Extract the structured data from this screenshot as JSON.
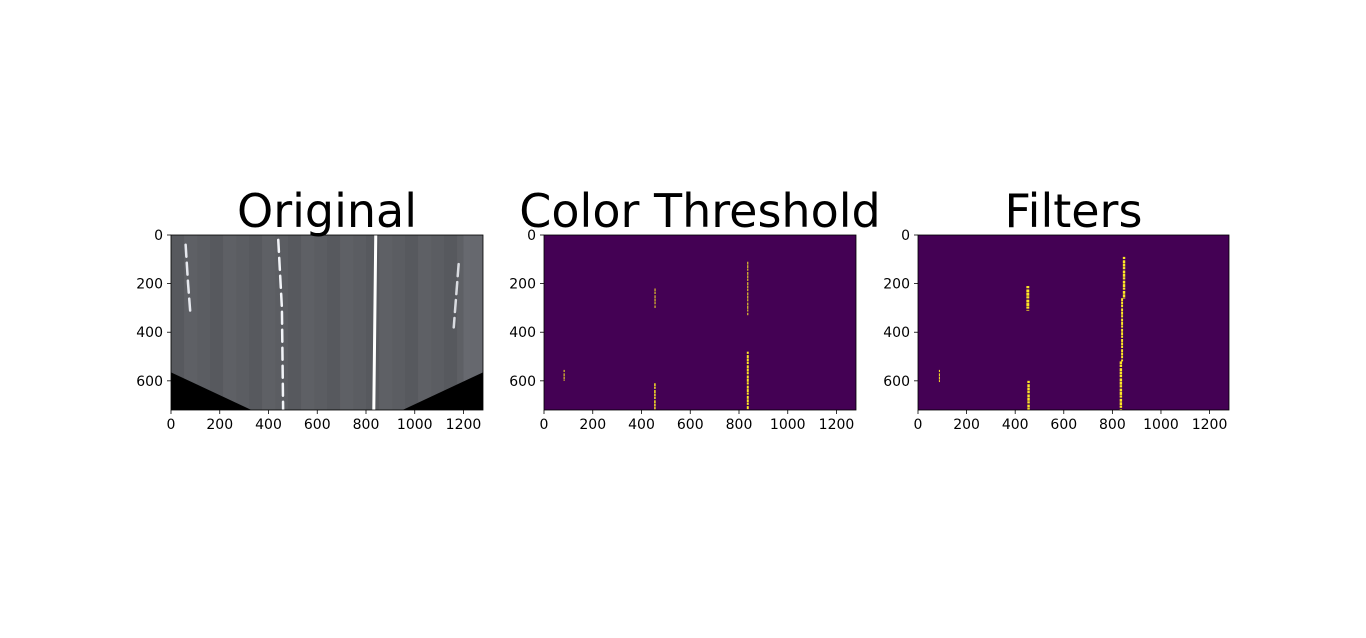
{
  "chart_data": [
    {
      "type": "image",
      "title": "Original",
      "image": "road",
      "xlim": [
        0,
        1280
      ],
      "ylim": [
        720,
        0
      ],
      "xticks": [
        0,
        200,
        400,
        600,
        800,
        1000,
        1200
      ],
      "yticks": [
        0,
        200,
        400,
        600
      ],
      "background": "#5a5c61",
      "lane_lines": [
        {
          "color": "#e6e8ee",
          "points": [
            [
              60,
              40
            ],
            [
              70,
              200
            ],
            [
              80,
              330
            ]
          ],
          "dashed": true
        },
        {
          "color": "#f2f4f8",
          "points": [
            [
              440,
              20
            ],
            [
              455,
              300
            ],
            [
              460,
              720
            ]
          ],
          "dashed": true
        },
        {
          "color": "#ffffff",
          "points": [
            [
              840,
              0
            ],
            [
              832,
              720
            ]
          ],
          "dashed": false
        },
        {
          "color": "#d9dbe0",
          "points": [
            [
              1180,
              120
            ],
            [
              1160,
              380
            ]
          ],
          "dashed": true
        }
      ],
      "masked_regions": [
        {
          "color": "#000000",
          "points": [
            [
              0,
              565
            ],
            [
              330,
              720
            ],
            [
              0,
              720
            ]
          ]
        },
        {
          "color": "#000000",
          "points": [
            [
              950,
              720
            ],
            [
              1280,
              565
            ],
            [
              1280,
              720
            ]
          ]
        }
      ]
    },
    {
      "type": "image",
      "title": "Color Threshold",
      "image": "binary",
      "xlim": [
        0,
        1280
      ],
      "ylim": [
        720,
        0
      ],
      "xticks": [
        0,
        200,
        400,
        600,
        800,
        1000,
        1200
      ],
      "yticks": [
        0,
        200,
        400,
        600
      ],
      "background": "#440154",
      "foreground": "#fde725",
      "segments": [
        {
          "x": 836,
          "y0": 110,
          "y1": 330,
          "width": 4
        },
        {
          "x": 836,
          "y0": 480,
          "y1": 720,
          "width": 8
        },
        {
          "x": 455,
          "y0": 220,
          "y1": 300,
          "width": 3
        },
        {
          "x": 455,
          "y0": 610,
          "y1": 720,
          "width": 6
        },
        {
          "x": 82,
          "y0": 555,
          "y1": 600,
          "width": 3
        }
      ]
    },
    {
      "type": "image",
      "title": "Filters",
      "image": "binary",
      "xlim": [
        0,
        1280
      ],
      "ylim": [
        720,
        0
      ],
      "xticks": [
        0,
        200,
        400,
        600,
        800,
        1000,
        1200
      ],
      "yticks": [
        0,
        200,
        400,
        600
      ],
      "background": "#440154",
      "foreground": "#fde725",
      "segments": [
        {
          "x": 848,
          "y0": 90,
          "y1": 260,
          "width": 10
        },
        {
          "x": 840,
          "y0": 260,
          "y1": 520,
          "width": 8
        },
        {
          "x": 835,
          "y0": 520,
          "y1": 720,
          "width": 10
        },
        {
          "x": 452,
          "y0": 210,
          "y1": 310,
          "width": 12
        },
        {
          "x": 455,
          "y0": 600,
          "y1": 720,
          "width": 10
        },
        {
          "x": 88,
          "y0": 555,
          "y1": 605,
          "width": 4
        }
      ]
    }
  ]
}
